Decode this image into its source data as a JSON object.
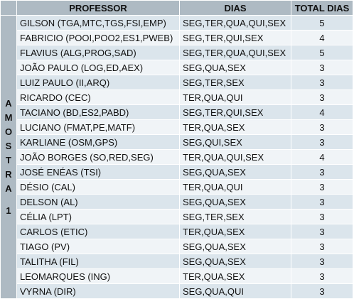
{
  "colors": {
    "header_bg": "#aebac3",
    "row_odd_bg": "#dbe5ec",
    "row_even_bg": "#f0f4f7",
    "side_bg": "#aebac3"
  },
  "header": {
    "professor": "PROFESSOR",
    "dias": "DIAS",
    "total": "TOTAL DIAS"
  },
  "side_label": {
    "word": [
      "A",
      "M",
      "O",
      "S",
      "T",
      "R",
      "A"
    ],
    "number": "1"
  },
  "rows": [
    {
      "professor": "GILSON (TGA,MTC,TGS,FSI,EMP)",
      "dias": "SEG,TER,QUA,QUI,SEX",
      "total": "5"
    },
    {
      "professor": "FABRICIO (POOI,POO2,ES1,PWEB)",
      "dias": "SEG,TER,QUI,SEX",
      "total": "4"
    },
    {
      "professor": "FLAVIUS (ALG,PROG,SAD)",
      "dias": "SEG,TER,QUA,QUI,SEX",
      "total": "5"
    },
    {
      "professor": "JOÃO PAULO (LOG,ED,AEX)",
      "dias": "SEG,QUA,SEX",
      "total": "3"
    },
    {
      "professor": "LUIZ PAULO (II,ARQ)",
      "dias": "SEG,TER,SEX",
      "total": "3"
    },
    {
      "professor": "RICARDO (CEC)",
      "dias": "TER,QUA,QUI",
      "total": "3"
    },
    {
      "professor": "TACIANO (BD,ES2,PABD)",
      "dias": "SEG,TER,QUI,SEX",
      "total": "4"
    },
    {
      "professor": "LUCIANO (FMAT,PE,MATF)",
      "dias": "TER,QUA,SEX",
      "total": "3"
    },
    {
      "professor": "KARLIANE (OSM,GPS)",
      "dias": "SEG,QUI,SEX",
      "total": "3"
    },
    {
      "professor": "JOÃO BORGES (SO,RED,SEG)",
      "dias": "TER,QUA,QUI,SEX",
      "total": "4"
    },
    {
      "professor": "JOSÉ ENÉAS (TSI)",
      "dias": "SEG,QUA,SEX",
      "total": "3"
    },
    {
      "professor": "DÉSIO (CAL)",
      "dias": "TER,QUA,QUI",
      "total": "3"
    },
    {
      "professor": "DELSON (AL)",
      "dias": "SEG,QUA,SEX",
      "total": "3"
    },
    {
      "professor": "CÉLIA (LPT)",
      "dias": "SEG,TER,SEX",
      "total": "3"
    },
    {
      "professor": "CARLOS (ETIC)",
      "dias": "TER,QUA,SEX",
      "total": "3"
    },
    {
      "professor": "TIAGO (PV)",
      "dias": "SEG,QUA,SEX",
      "total": "3"
    },
    {
      "professor": "TALITHA (FIL)",
      "dias": "SEG,QUA,SEX",
      "total": "3"
    },
    {
      "professor": "LEOMARQUES (ING)",
      "dias": "TER,QUA,SEX",
      "total": "3"
    },
    {
      "professor": "VYRNA (DIR)",
      "dias": "SEG,QUA,QUI",
      "total": "3"
    }
  ]
}
